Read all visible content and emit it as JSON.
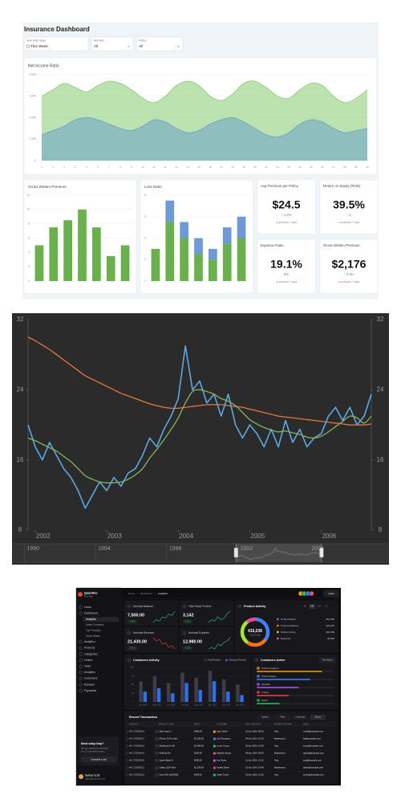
{
  "insurance": {
    "title": "Insurance Dashboard",
    "filters": [
      {
        "label": "Auto date range",
        "value": "This Week"
      },
      {
        "label": "Services",
        "value": "All"
      },
      {
        "label": "Policy",
        "value": "All"
      }
    ],
    "net_income": {
      "type": "area",
      "title": "Net Income Ratio",
      "x": [
        1,
        2,
        3,
        4,
        5,
        6,
        7,
        8,
        9,
        10,
        11,
        12,
        13,
        14,
        15,
        16,
        17,
        18,
        19,
        20,
        21,
        22,
        23,
        24,
        25,
        26,
        27,
        28,
        29,
        30
      ],
      "xlim": [
        1,
        30
      ],
      "ylim": [
        0,
        4000
      ],
      "yticks": [
        0,
        {
          "value": 1000,
          "label": "1,000"
        },
        {
          "value": 2000,
          "label": "2,000"
        },
        {
          "value": 3000,
          "label": "3,000"
        },
        {
          "value": 4000,
          "label": "4,000"
        }
      ],
      "grid": true,
      "series": [
        {
          "color": "#8fcf7c",
          "values": [
            3000,
            3300,
            3600,
            3400,
            3200,
            3500,
            3700,
            3600,
            3300,
            2900,
            2700,
            3000,
            3500,
            3700,
            3500,
            3000,
            2800,
            3100,
            3600,
            3700,
            3400,
            3000,
            2900,
            3300,
            3600,
            3500,
            3000,
            2700,
            2900,
            3300
          ]
        },
        {
          "color": "#6fa6c8",
          "values": [
            1200,
            1400,
            1600,
            1900,
            2000,
            1900,
            1700,
            1500,
            1400,
            1600,
            1900,
            1800,
            1500,
            1300,
            1400,
            1700,
            1900,
            2000,
            1800,
            1500,
            1200,
            1100,
            1300,
            1700,
            1900,
            1800,
            1500,
            1300,
            1400,
            1500
          ]
        }
      ]
    },
    "gross_written_premium": {
      "type": "bar",
      "title": "Gross Written Premium",
      "values": [
        5,
        7.5,
        8.5,
        10,
        7.5,
        3.5,
        5
      ],
      "color": "#6ab04c",
      "ylim": [
        0,
        12
      ],
      "yticks": [
        0,
        2,
        4,
        6,
        8,
        10,
        12
      ],
      "grid": true
    },
    "loss_ratio": {
      "type": "stacked_bar",
      "title": "Loss Ratio",
      "series": [
        {
          "color": "#6ab04c",
          "values": [
            3,
            5.5,
            4,
            2.5,
            2,
            3.5,
            4
          ]
        },
        {
          "color": "#6e9bd8",
          "values": [
            0,
            2,
            1.5,
            1.5,
            1,
            1.5,
            2
          ]
        }
      ],
      "ylim": [
        0,
        8
      ],
      "yticks": [
        0,
        2,
        4,
        6,
        8
      ],
      "grid": true
    },
    "kpis": [
      {
        "title": "Avg Premium per Policy",
        "value": "$24.5",
        "change": "↑ 1.2%",
        "note": "vs previous 7 days"
      },
      {
        "title": "Return on Equity (ROE)",
        "value": "39.5%",
        "change": "↑ 1",
        "note": "vs previous 7 days"
      },
      {
        "title": "Expense Ratio",
        "value": "19.1%",
        "change": "8%",
        "note": "vs previous 7 days"
      },
      {
        "title": "Gross Written Premium",
        "value": "$2,176",
        "change": "↑ 2.3%",
        "note": "vs previous 7 days"
      }
    ]
  },
  "price_chart": {
    "type": "line",
    "x": [
      2001.9,
      2002.0,
      2002.1,
      2002.2,
      2002.3,
      2002.4,
      2002.5,
      2002.6,
      2002.7,
      2002.8,
      2002.9,
      2003.0,
      2003.1,
      2003.2,
      2003.3,
      2003.4,
      2003.5,
      2003.6,
      2003.7,
      2003.8,
      2003.9,
      2004.0,
      2004.1,
      2004.2,
      2004.3,
      2004.4,
      2004.5,
      2004.6,
      2004.7,
      2004.8,
      2004.9,
      2005.0,
      2005.1,
      2005.2,
      2005.3,
      2005.4,
      2005.5,
      2005.6,
      2005.7,
      2005.8,
      2005.9,
      2006.0,
      2006.1,
      2006.2,
      2006.3,
      2006.4,
      2006.5,
      2006.6,
      2006.7
    ],
    "xlim": [
      2001.9,
      2006.7
    ],
    "xticks": [
      2002,
      2003,
      2004,
      2005,
      2006
    ],
    "ylim": [
      8,
      32
    ],
    "yticks": [
      8,
      16,
      24,
      32
    ],
    "grid": false,
    "series": [
      {
        "color": "#e8743b",
        "values": [
          30,
          29.6,
          29.1,
          28.6,
          28.0,
          27.4,
          26.8,
          26.2,
          25.6,
          25.2,
          24.8,
          24.4,
          24.0,
          23.6,
          23.3,
          23.0,
          22.7,
          22.4,
          22.2,
          22.0,
          21.9,
          21.9,
          22.0,
          22.1,
          22.2,
          22.3,
          22.3,
          22.3,
          22.2,
          22.1,
          22.0,
          21.8,
          21.6,
          21.4,
          21.2,
          21.0,
          20.9,
          20.8,
          20.7,
          20.6,
          20.5,
          20.4,
          20.3,
          20.2,
          20.1,
          20.0,
          20.0,
          20.0,
          20.1
        ]
      },
      {
        "color": "#5aa9e6",
        "values": [
          20,
          17.5,
          16,
          18,
          16.5,
          15,
          14,
          12.5,
          10.5,
          12,
          13.5,
          12.5,
          14,
          13,
          14.5,
          15,
          16.5,
          18.5,
          17.5,
          19.5,
          21,
          23,
          29,
          24,
          25,
          22.5,
          23.5,
          21,
          23.5,
          20,
          18.5,
          20,
          19,
          17.5,
          19.5,
          17.5,
          20.5,
          18,
          19.5,
          17.5,
          18.5,
          19,
          21,
          22,
          20.5,
          22,
          20,
          21,
          23.5
        ]
      },
      {
        "color": "#86b25f",
        "values": [
          18.5,
          18.2,
          17.8,
          17.4,
          17.0,
          16.4,
          15.8,
          15.0,
          14.2,
          13.8,
          13.5,
          13.4,
          13.4,
          13.5,
          13.8,
          14.3,
          15.0,
          16.2,
          17.2,
          18.3,
          19.5,
          20.8,
          22.5,
          23.8,
          24,
          23.8,
          23.5,
          23,
          22.7,
          22.2,
          21.4,
          20.6,
          20.1,
          19.7,
          19.4,
          19.2,
          19.3,
          19.1,
          18.9,
          18.6,
          18.5,
          18.7,
          19.2,
          19.8,
          20.4,
          21,
          20.8,
          20.2,
          21
        ]
      }
    ],
    "navigator": {
      "xlim": [
        1989.4,
        2010.4
      ],
      "xticks": [
        1990,
        1994,
        1998,
        2002,
        2006
      ]
    }
  },
  "analytics": {
    "brand": "Quantivo",
    "team": "Free Plan",
    "sidebar": [
      {
        "label": "Home"
      },
      {
        "label": "Dashboard",
        "children": [
          "Analytics",
          "Sales Overview",
          "Top Products",
          "Stock Status"
        ]
      },
      {
        "label": "Analytics"
      },
      {
        "label": "Products"
      },
      {
        "label": "Categories"
      },
      {
        "label": "Orders"
      },
      {
        "label": "Team"
      },
      {
        "label": "Analytics"
      },
      {
        "label": "Customers"
      },
      {
        "label": "Reviews"
      },
      {
        "label": "Payments"
      }
    ],
    "promo": {
      "title": "Need setup help?",
      "lines": [
        "Get your questions answered",
        "in a 1:1 call with our team."
      ],
      "button": "Schedule a call"
    },
    "user": {
      "name": "Nathan Scott",
      "email": "nathan@example.com"
    },
    "breadcrumb": [
      "Home",
      "Dashboard",
      "Analytics"
    ],
    "invite": "Invite",
    "cards": [
      {
        "title": "Nominal Balance",
        "value": "7,500.00",
        "change": "7.8%",
        "color": "#34c77b",
        "spark": [
          3,
          4,
          3.5,
          5,
          4.5,
          6,
          5.5,
          7
        ]
      },
      {
        "title": "Total Stock Product",
        "value": "3,142",
        "change": "6.3%",
        "color": "#34c77b",
        "spark": [
          2,
          3,
          2.5,
          4,
          3,
          3.5,
          5,
          6
        ]
      },
      {
        "title": "Nominal Revenue",
        "value": "21,430.00",
        "change": "4.2%",
        "color": "#ef4444",
        "spark": [
          6,
          5,
          5.5,
          4,
          4.5,
          3,
          3.5,
          2.5
        ]
      },
      {
        "title": "Nominal Expense",
        "value": "12,980.00",
        "change": "5.1%",
        "color": "#34c77b",
        "spark": [
          3,
          3.5,
          3,
          4.5,
          4,
          5,
          5.5,
          6.5
        ]
      }
    ],
    "product_activity": {
      "type": "donut",
      "title": "Product Activity",
      "tabs": [
        "1D",
        "1W",
        "1M",
        "1Y"
      ],
      "total": "415,236",
      "total_label": "Total Activity",
      "segments": [
        {
          "name": "To Be Packed",
          "value": 150000,
          "label": "150,000",
          "color": "#3b82f6"
        },
        {
          "name": "Process Delivery",
          "value": 105000,
          "label": "105,000",
          "color": "#f97316"
        },
        {
          "name": "Delivery Done",
          "value": 120236,
          "label": "120,236",
          "color": "#a3e635"
        },
        {
          "name": "Returned",
          "value": 40000,
          "label": "40,000",
          "color": "#ec4899"
        }
      ]
    },
    "customers_activity": {
      "type": "bar",
      "title": "Customers Activity",
      "categories": [
        "Apr 2023",
        "May 2023",
        "Jun 2023",
        "Jul 2023",
        "Aug 2023",
        "Sep 2023",
        "Oct 2023",
        "Nov 2023"
      ],
      "series": [
        {
          "name": "Total Product",
          "color": "#3d3d4c",
          "values": [
            60,
            75,
            55,
            85,
            70,
            90,
            65,
            50
          ]
        },
        {
          "name": "Checkout Product",
          "color": "#2f6fed",
          "values": [
            30,
            40,
            25,
            55,
            35,
            60,
            30,
            20
          ]
        }
      ],
      "ylim": [
        0,
        100
      ],
      "yticks": [
        0,
        25,
        50,
        75,
        100
      ],
      "grid": true
    },
    "customers_active": {
      "title": "Customers Active",
      "filter": "This Month",
      "xlim": [
        0,
        100
      ],
      "countries": [
        {
          "name": "United Kingdom",
          "value": 85,
          "color": "#f59e0b"
        },
        {
          "name": "United States",
          "value": 70,
          "color": "#3b82f6"
        },
        {
          "name": "Sweden",
          "value": 55,
          "color": "#a855f7"
        },
        {
          "name": "Turkey",
          "value": 42,
          "color": "#ef4444"
        },
        {
          "name": "Spain",
          "value": 30,
          "color": "#22c55e"
        }
      ]
    },
    "transactions": {
      "title": "Recent Transaction",
      "controls": [
        "Search",
        "Filter",
        "Customize",
        "Export"
      ],
      "columns": [
        "ORDER ID",
        "PRODUCT / ITEM",
        "PRICE",
        "CUSTOMER",
        "DATE CHECKOUT",
        "PAYMENT METHOD",
        "EMAIL"
      ],
      "rows": [
        [
          "#A-1733365016",
          "Nike Super 1",
          "$499.00",
          "Liam Smith",
          "01 Apr 2024, 08:32",
          "Visa",
          "smith@example.com"
        ],
        [
          "#A-1733365017",
          "iPhone 15 Pro Max",
          "$1,299.00",
          "Lily Thompson",
          "04 Apr 2024, 10:15",
          "Mastercard",
          "lily@example.com"
        ],
        [
          "#A-1733365018",
          "MacBook Air M2",
          "$1,099.00",
          "Lucas Young",
          "06 Apr 2024, 14:20",
          "Visa",
          "lucas@example.com"
        ],
        [
          "#A-1733365019",
          "AirPods Pro",
          "$249.00",
          "Isabella Garcia",
          "09 Apr 2024, 09:05",
          "Mastercard",
          "garcia@example.com"
        ],
        [
          "#A-1733365020",
          "Apple Watch 9",
          "$399.00",
          "Ava Taylor",
          "11 Apr 2024, 13:10",
          "Visa",
          "ava@example.com"
        ],
        [
          "#A-1733365021",
          "Galaxy S24 Ultra",
          "$1,199.00",
          "Amelia Davis",
          "13 Apr 2024, 16:40",
          "Mastercard",
          "davis@example.com"
        ],
        [
          "#A-1733365022",
          "Sony WH-1000XM5",
          "$349.00",
          "Caleb Turner",
          "15 Apr 2024, 11:25",
          "Visa",
          "turner@example.com"
        ]
      ]
    }
  }
}
